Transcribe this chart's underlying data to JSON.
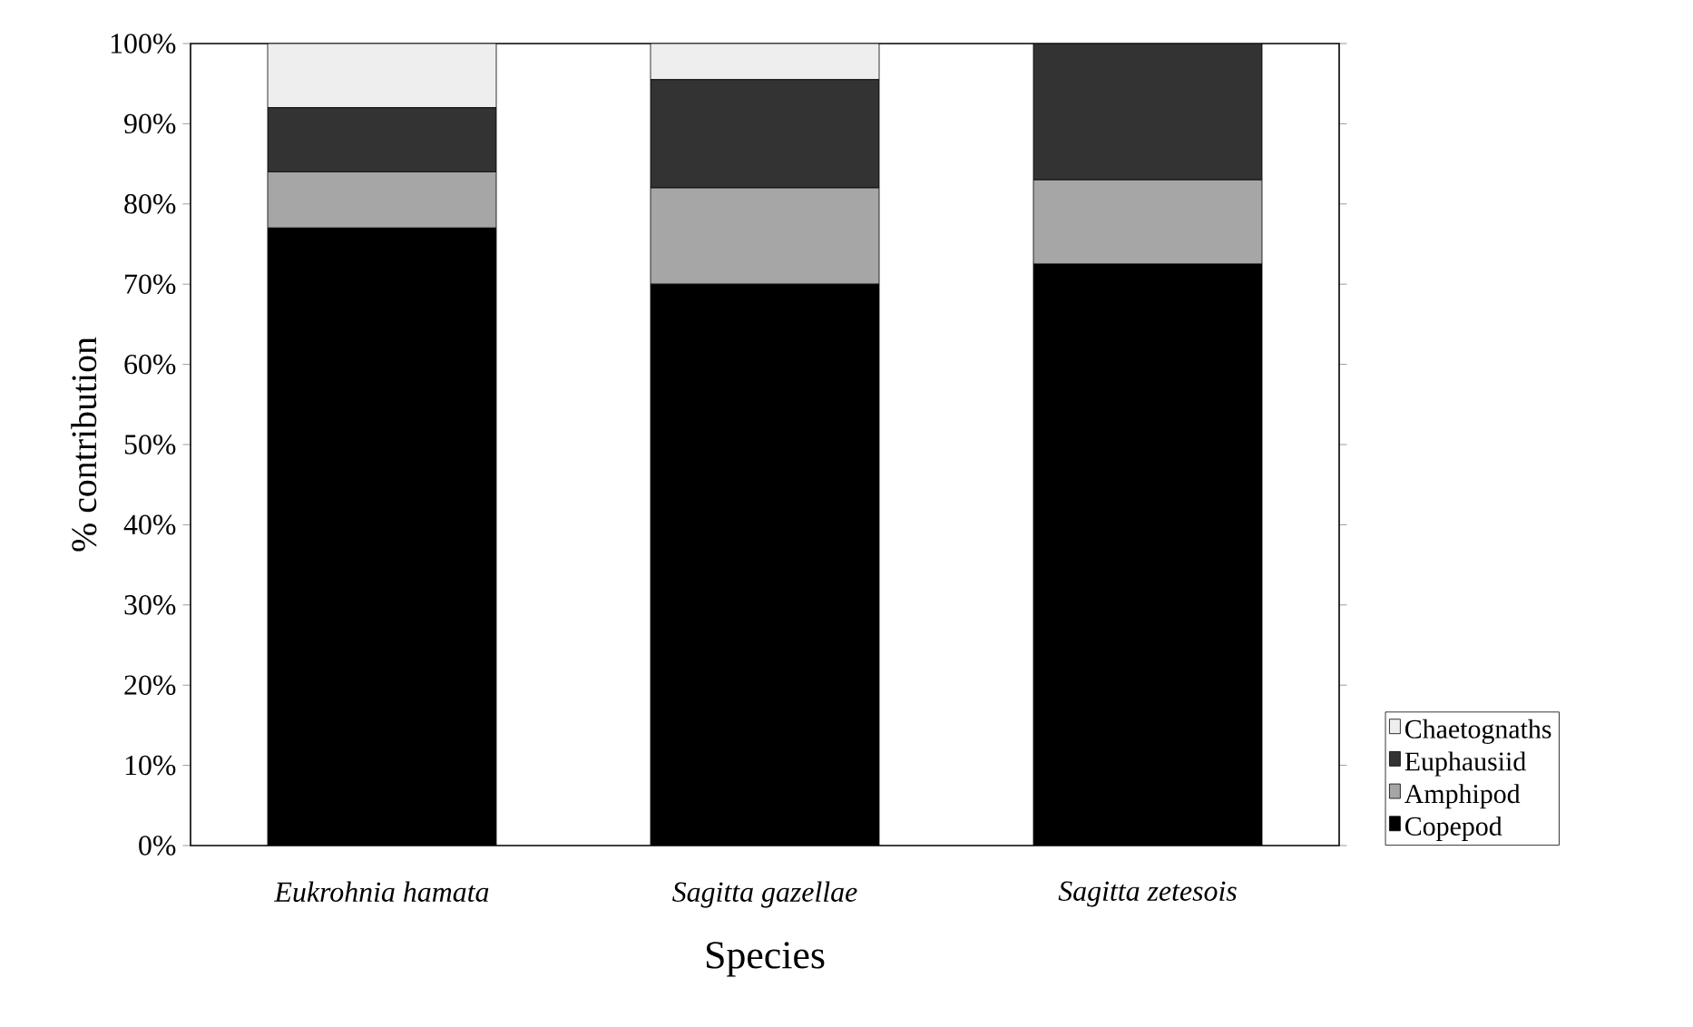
{
  "chart_data": {
    "type": "bar",
    "stacked": true,
    "xlabel": "Species",
    "ylabel": "% contribution",
    "categories": [
      "Eukrohnia hamata",
      "Sagitta gazellae",
      "Sagitta zetesois"
    ],
    "series": [
      {
        "name": "Copepod",
        "color": "#000000",
        "values": [
          77,
          70,
          72.5
        ]
      },
      {
        "name": "Amphipod",
        "color": "#a6a6a6",
        "values": [
          7,
          12,
          10.5
        ]
      },
      {
        "name": "Euphausiid",
        "color": "#333333",
        "values": [
          8,
          13.5,
          17
        ]
      },
      {
        "name": "Chaetognaths",
        "color": "#eeeeee",
        "values": [
          8,
          4.5,
          0
        ]
      }
    ],
    "ylim": [
      0,
      100
    ],
    "yticks": [
      {
        "value": 0,
        "label": "0%"
      },
      {
        "value": 10,
        "label": "10%"
      },
      {
        "value": 20,
        "label": "20%"
      },
      {
        "value": 30,
        "label": "30%"
      },
      {
        "value": 40,
        "label": "40%"
      },
      {
        "value": 50,
        "label": "50%"
      },
      {
        "value": 60,
        "label": "60%"
      },
      {
        "value": 70,
        "label": "70%"
      },
      {
        "value": 80,
        "label": "80%"
      },
      {
        "value": 90,
        "label": "90%"
      },
      {
        "value": 100,
        "label": "100%"
      }
    ],
    "legend": "right"
  }
}
